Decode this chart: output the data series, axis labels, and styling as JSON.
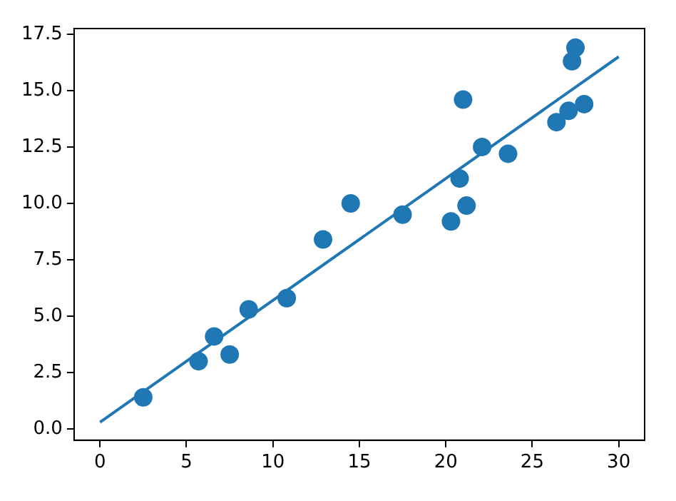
{
  "chart_data": {
    "type": "scatter",
    "grid": false,
    "xlim": [
      -1.5,
      31.5
    ],
    "xticks": [
      0,
      5,
      10,
      15,
      20,
      25,
      30
    ],
    "ylim": [
      -0.5,
      17.75
    ],
    "yticks": [
      {
        "value": 0,
        "label": "0.0"
      },
      {
        "value": 2.5,
        "label": "2.5"
      },
      {
        "value": 5,
        "label": "5.0"
      },
      {
        "value": 7.5,
        "label": "7.5"
      },
      {
        "value": 10,
        "label": "10.0"
      },
      {
        "value": 12.5,
        "label": "12.5"
      },
      {
        "value": 15,
        "label": "15.0"
      },
      {
        "value": 17.5,
        "label": "17.5"
      }
    ],
    "series": [
      {
        "marker": "circle",
        "color": "#1f77b4",
        "x": [
          2.5,
          5.7,
          6.6,
          7.5,
          8.6,
          10.8,
          12.9,
          14.5,
          17.5,
          20.3,
          20.8,
          21.0,
          21.2,
          22.1,
          23.6,
          26.4,
          27.1,
          27.3,
          27.5,
          28.0
        ],
        "values": [
          1.4,
          3.0,
          4.1,
          3.3,
          5.3,
          5.8,
          8.4,
          10.0,
          9.5,
          9.2,
          11.1,
          14.6,
          9.9,
          12.5,
          12.2,
          13.6,
          14.1,
          16.3,
          16.9,
          14.4
        ]
      },
      {
        "type": "line",
        "color": "#1f77b4",
        "x": [
          0,
          30
        ],
        "values": [
          0.3,
          16.5
        ]
      }
    ]
  }
}
